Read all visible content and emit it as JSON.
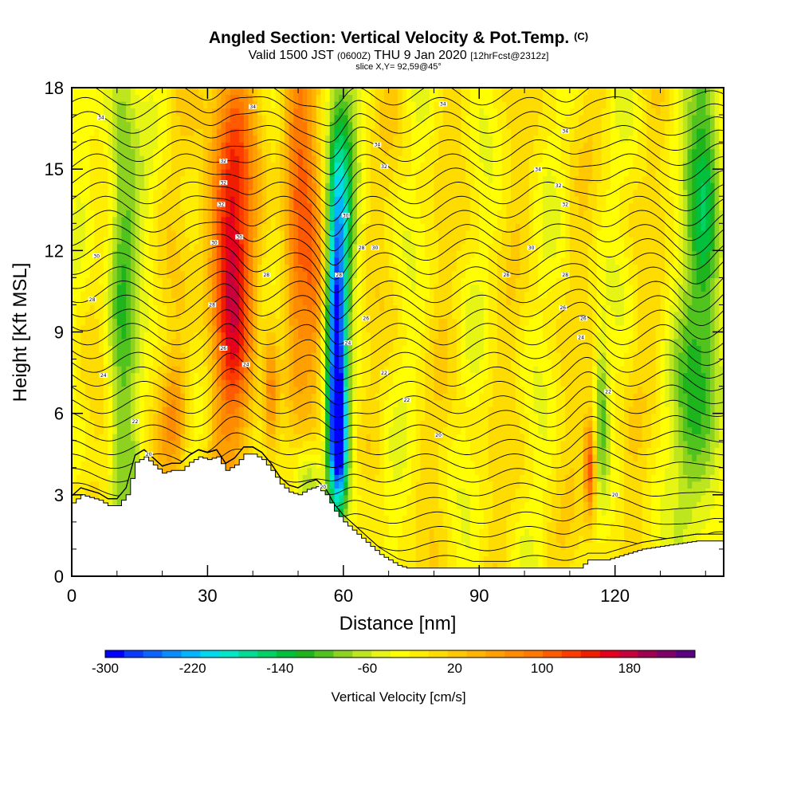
{
  "title": {
    "main": "Angled Section: Vertical Velocity & Pot.Temp.",
    "main_suffix": "(C)",
    "valid_prefix": "Valid 1500 JST",
    "valid_utc": "(0600Z)",
    "valid_date": "THU 9 Jan 2020",
    "forecast": "[12hrFcst@2312z]",
    "slice": "slice X,Y= 92,59@45°"
  },
  "chart_data": {
    "type": "heatmap",
    "xlabel": "Distance [nm]",
    "ylabel": "Height [Kft MSL]",
    "xlim": [
      0,
      144
    ],
    "ylim": [
      0,
      18
    ],
    "x_ticks": [
      "0",
      "30",
      "60",
      "90",
      "120"
    ],
    "y_ticks": [
      "0",
      "3",
      "6",
      "9",
      "12",
      "15",
      "18"
    ],
    "x_tick_values": [
      0,
      30,
      60,
      90,
      120
    ],
    "y_tick_values": [
      0,
      3,
      6,
      9,
      12,
      15,
      18
    ],
    "x_minor_step": 10,
    "y_minor_step": 1,
    "colorbar": {
      "title": "Vertical Velocity [cm/s]",
      "labels": [
        "-300",
        "-220",
        "-140",
        "-60",
        "20",
        "100",
        "180"
      ],
      "label_values": [
        -300,
        -220,
        -140,
        -60,
        20,
        100,
        180
      ],
      "min": -300,
      "max": 220,
      "step": 20,
      "colors": [
        "#0000ff",
        "#0a3cff",
        "#0b64ff",
        "#0a8cff",
        "#00b4ff",
        "#00d8f0",
        "#00e6c8",
        "#00dc96",
        "#00d264",
        "#00c03c",
        "#1eb41e",
        "#50c31e",
        "#8cd21e",
        "#bee61e",
        "#e6f514",
        "#ffff00",
        "#ffee00",
        "#ffdc00",
        "#ffc800",
        "#ffb400",
        "#ffa000",
        "#ff8c00",
        "#ff7800",
        "#ff5a00",
        "#ff3c00",
        "#f01e00",
        "#e6001e",
        "#c8003c",
        "#a00050",
        "#80006a",
        "#5a0082"
      ]
    },
    "terrain_kft": {
      "x": [
        0,
        2,
        6,
        8,
        10,
        12,
        14,
        16,
        18,
        20,
        22,
        24,
        26,
        28,
        30,
        32,
        34,
        36,
        38,
        40,
        42,
        44,
        46,
        48,
        50,
        52,
        54,
        56,
        58,
        60,
        62,
        64,
        66,
        68,
        70,
        72,
        74,
        80,
        90,
        100,
        112,
        114,
        118,
        126,
        138,
        144
      ],
      "h": [
        2.7,
        3.0,
        2.8,
        2.6,
        2.6,
        3.0,
        4.2,
        4.4,
        4.1,
        3.8,
        3.9,
        3.9,
        4.2,
        4.4,
        4.3,
        4.4,
        3.9,
        4.1,
        4.5,
        4.5,
        4.3,
        3.9,
        3.4,
        3.1,
        3.0,
        3.2,
        3.3,
        3.0,
        2.4,
        2.0,
        1.7,
        1.4,
        1.1,
        0.8,
        0.6,
        0.4,
        0.3,
        0.3,
        0.3,
        0.3,
        0.3,
        0.6,
        0.6,
        1.0,
        1.3,
        1.3
      ]
    },
    "vertical_velocity_features": [
      {
        "name": "updraft",
        "x": 35,
        "z": 12.0,
        "sx": 3.5,
        "sz": 5.0,
        "w": 210
      },
      {
        "name": "updraft",
        "x": 50,
        "z": 15.0,
        "sx": 2.6,
        "sz": 5.0,
        "w": 140
      },
      {
        "name": "updraft",
        "x": 114.5,
        "z": 4.0,
        "sx": 0.9,
        "sz": 1.3,
        "w": 160
      },
      {
        "name": "updraft",
        "x": 44,
        "z": 7.0,
        "sx": 1.2,
        "sz": 1.8,
        "w": 110
      },
      {
        "name": "updraft",
        "x": 23,
        "z": 6.0,
        "sx": 2.0,
        "sz": 1.5,
        "w": 80
      },
      {
        "name": "updraft",
        "x": 54,
        "z": 10.0,
        "sx": 1.6,
        "sz": 2.0,
        "w": 80
      },
      {
        "name": "downdraft",
        "x": 58.5,
        "z": 8.5,
        "sx": 1.4,
        "sz": 4.0,
        "w": -250
      },
      {
        "name": "downdraft",
        "x": 59,
        "z": 5.0,
        "sx": 1.4,
        "sz": 1.4,
        "w": -220
      },
      {
        "name": "downdraft",
        "x": 59.5,
        "z": 14.0,
        "sx": 2.4,
        "sz": 5.0,
        "w": -120
      },
      {
        "name": "downdraft",
        "x": 11,
        "z": 12.0,
        "sx": 2.5,
        "sz": 7.0,
        "w": -110
      },
      {
        "name": "downdraft",
        "x": 140,
        "z": 12.0,
        "sx": 3.0,
        "sz": 7.0,
        "w": -140
      },
      {
        "name": "downdraft",
        "x": 136,
        "z": 5.0,
        "sx": 2.5,
        "sz": 2.5,
        "w": -70
      },
      {
        "name": "downdraft",
        "x": 117,
        "z": 6.5,
        "sx": 1.0,
        "sz": 2.0,
        "w": -80
      },
      {
        "name": "downdraft",
        "x": 52,
        "z": 3.6,
        "sx": 2.0,
        "sz": 1.0,
        "w": -80
      },
      {
        "name": "downdraft",
        "x": 64,
        "z": 3.0,
        "sx": 3.0,
        "sz": 1.0,
        "w": -40
      }
    ],
    "contour_labels": [
      {
        "x": 6.5,
        "z": 16.9,
        "text": "34"
      },
      {
        "x": 40,
        "z": 17.3,
        "text": "34"
      },
      {
        "x": 82,
        "z": 17.4,
        "text": "34"
      },
      {
        "x": 33.5,
        "z": 15.3,
        "text": "32"
      },
      {
        "x": 33.5,
        "z": 14.5,
        "text": "32"
      },
      {
        "x": 33,
        "z": 13.7,
        "text": "32"
      },
      {
        "x": 31.5,
        "z": 12.3,
        "text": "30"
      },
      {
        "x": 37,
        "z": 12.5,
        "text": "30"
      },
      {
        "x": 5.5,
        "z": 11.8,
        "text": "30"
      },
      {
        "x": 43,
        "z": 11.1,
        "text": "28"
      },
      {
        "x": 4.5,
        "z": 10.2,
        "text": "28"
      },
      {
        "x": 31,
        "z": 10.0,
        "text": "28"
      },
      {
        "x": 33.5,
        "z": 8.4,
        "text": "26"
      },
      {
        "x": 38.5,
        "z": 7.8,
        "text": "24"
      },
      {
        "x": 7,
        "z": 7.4,
        "text": "24"
      },
      {
        "x": 14,
        "z": 5.7,
        "text": "22"
      },
      {
        "x": 17,
        "z": 4.5,
        "text": "20"
      },
      {
        "x": 67,
        "z": 12.1,
        "text": "30"
      },
      {
        "x": 69,
        "z": 15.1,
        "text": "32"
      },
      {
        "x": 67.5,
        "z": 15.9,
        "text": "34"
      },
      {
        "x": 60.5,
        "z": 13.3,
        "text": "30"
      },
      {
        "x": 64,
        "z": 12.1,
        "text": "28"
      },
      {
        "x": 59,
        "z": 11.1,
        "text": "28"
      },
      {
        "x": 65,
        "z": 9.5,
        "text": "26"
      },
      {
        "x": 61,
        "z": 8.6,
        "text": "24"
      },
      {
        "x": 69,
        "z": 7.5,
        "text": "22"
      },
      {
        "x": 74,
        "z": 6.5,
        "text": "22"
      },
      {
        "x": 81,
        "z": 5.2,
        "text": "20"
      },
      {
        "x": 103,
        "z": 15.0,
        "text": "34"
      },
      {
        "x": 107.5,
        "z": 14.4,
        "text": "32"
      },
      {
        "x": 109,
        "z": 13.7,
        "text": "32"
      },
      {
        "x": 101.5,
        "z": 12.1,
        "text": "30"
      },
      {
        "x": 96,
        "z": 11.1,
        "text": "28"
      },
      {
        "x": 109,
        "z": 11.1,
        "text": "28"
      },
      {
        "x": 108.5,
        "z": 9.9,
        "text": "26"
      },
      {
        "x": 113,
        "z": 9.5,
        "text": "26"
      },
      {
        "x": 112.5,
        "z": 8.8,
        "text": "24"
      },
      {
        "x": 118.5,
        "z": 6.8,
        "text": "22"
      },
      {
        "x": 120,
        "z": 3.0,
        "text": "20"
      },
      {
        "x": 55.5,
        "z": 3.3,
        "text": "20"
      },
      {
        "x": 109,
        "z": 16.4,
        "text": "34"
      }
    ]
  }
}
